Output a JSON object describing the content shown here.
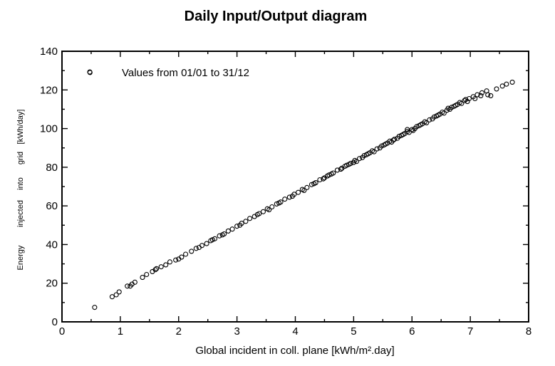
{
  "chart_data": {
    "type": "scatter",
    "title": "Daily Input/Output diagram",
    "xlabel": "Global incident in coll. plane [kWh/m².day]",
    "ylabel_words": [
      "Energy",
      "injected",
      "into",
      "grid",
      "[kWh/day]"
    ],
    "xlim": [
      0,
      8
    ],
    "ylim": [
      0,
      140
    ],
    "xticks": [
      0,
      1,
      2,
      3,
      4,
      5,
      6,
      7,
      8
    ],
    "yticks": [
      0,
      20,
      40,
      60,
      80,
      100,
      120,
      140
    ],
    "grid": false,
    "legend": {
      "label": "Values from 01/01 to 31/12",
      "placement": "top-left"
    },
    "series": [
      {
        "marker": "open-circle",
        "points": [
          [
            0.48,
            129
          ],
          [
            0.56,
            7.5
          ],
          [
            0.86,
            13
          ],
          [
            0.93,
            14
          ],
          [
            0.98,
            15.5
          ],
          [
            1.12,
            18.5
          ],
          [
            1.17,
            18.5
          ],
          [
            1.25,
            20.5
          ],
          [
            1.38,
            23
          ],
          [
            1.45,
            24.5
          ],
          [
            1.55,
            26
          ],
          [
            1.62,
            27.5
          ],
          [
            1.7,
            28.5
          ],
          [
            1.78,
            29.5
          ],
          [
            1.85,
            31
          ],
          [
            1.95,
            32
          ],
          [
            2.05,
            33.5
          ],
          [
            2.12,
            35
          ],
          [
            2.22,
            36.5
          ],
          [
            2.3,
            38
          ],
          [
            2.4,
            39.5
          ],
          [
            2.48,
            40.5
          ],
          [
            2.55,
            42
          ],
          [
            2.62,
            43
          ],
          [
            2.7,
            44.5
          ],
          [
            2.78,
            45.5
          ],
          [
            2.85,
            47
          ],
          [
            2.92,
            48
          ],
          [
            3.0,
            49.5
          ],
          [
            3.08,
            51
          ],
          [
            3.15,
            52
          ],
          [
            3.22,
            53.5
          ],
          [
            3.3,
            54.5
          ],
          [
            3.38,
            56
          ],
          [
            3.45,
            57
          ],
          [
            3.52,
            58.5
          ],
          [
            3.6,
            59.5
          ],
          [
            3.68,
            61
          ],
          [
            3.75,
            62
          ],
          [
            3.82,
            63.5
          ],
          [
            3.9,
            64.5
          ],
          [
            3.98,
            66
          ],
          [
            4.05,
            67
          ],
          [
            4.12,
            68.5
          ],
          [
            4.2,
            69.5
          ],
          [
            4.28,
            71
          ],
          [
            4.35,
            72
          ],
          [
            4.42,
            73.5
          ],
          [
            4.5,
            74.5
          ],
          [
            4.58,
            76
          ],
          [
            4.65,
            77
          ],
          [
            4.72,
            78.5
          ],
          [
            4.8,
            79.5
          ],
          [
            4.88,
            81
          ],
          [
            4.95,
            82
          ],
          [
            5.02,
            83.5
          ],
          [
            5.1,
            84.5
          ],
          [
            5.18,
            86
          ],
          [
            5.25,
            87
          ],
          [
            5.32,
            88.5
          ],
          [
            5.4,
            89.5
          ],
          [
            5.48,
            91
          ],
          [
            5.55,
            92
          ],
          [
            5.62,
            93.5
          ],
          [
            5.7,
            94.5
          ],
          [
            5.78,
            96
          ],
          [
            5.85,
            97
          ],
          [
            5.92,
            98.5
          ],
          [
            6.0,
            99.5
          ],
          [
            6.08,
            101
          ],
          [
            6.15,
            102
          ],
          [
            6.22,
            103.5
          ],
          [
            6.3,
            104.5
          ],
          [
            6.38,
            106
          ],
          [
            6.45,
            107
          ],
          [
            6.52,
            108.5
          ],
          [
            6.6,
            109.5
          ],
          [
            6.68,
            111
          ],
          [
            6.75,
            112
          ],
          [
            6.82,
            113.5
          ],
          [
            6.9,
            114.5
          ],
          [
            6.98,
            115.5
          ],
          [
            7.05,
            116.5
          ],
          [
            7.12,
            117.5
          ],
          [
            7.2,
            118.5
          ],
          [
            7.28,
            119.5
          ],
          [
            7.35,
            117
          ],
          [
            7.45,
            120.5
          ],
          [
            7.55,
            122
          ],
          [
            7.62,
            123
          ],
          [
            7.72,
            124
          ],
          [
            1.2,
            19.5
          ],
          [
            1.6,
            27
          ],
          [
            2.0,
            32.5
          ],
          [
            2.35,
            38.5
          ],
          [
            2.58,
            42.5
          ],
          [
            2.75,
            45
          ],
          [
            3.05,
            50
          ],
          [
            3.35,
            55.5
          ],
          [
            3.55,
            58
          ],
          [
            3.72,
            61.5
          ],
          [
            3.95,
            65
          ],
          [
            4.15,
            68
          ],
          [
            4.32,
            71.5
          ],
          [
            4.48,
            74
          ],
          [
            4.62,
            76.5
          ],
          [
            4.78,
            79
          ],
          [
            4.92,
            81.5
          ],
          [
            5.05,
            83
          ],
          [
            5.15,
            85
          ],
          [
            5.22,
            86.5
          ],
          [
            5.35,
            88
          ],
          [
            5.45,
            90
          ],
          [
            5.52,
            91.5
          ],
          [
            5.65,
            93
          ],
          [
            5.75,
            95
          ],
          [
            5.88,
            97.5
          ],
          [
            5.95,
            98
          ],
          [
            6.05,
            100
          ],
          [
            6.12,
            101.5
          ],
          [
            6.25,
            103
          ],
          [
            6.35,
            105
          ],
          [
            6.42,
            106.5
          ],
          [
            6.55,
            108
          ],
          [
            6.65,
            110
          ],
          [
            6.72,
            111.5
          ],
          [
            6.85,
            113
          ],
          [
            6.95,
            114
          ],
          [
            7.08,
            115.5
          ],
          [
            7.18,
            117
          ],
          [
            7.3,
            117.5
          ],
          [
            4.55,
            75.5
          ],
          [
            4.85,
            80.5
          ],
          [
            5.0,
            82.5
          ],
          [
            5.28,
            87.5
          ],
          [
            5.58,
            92.5
          ],
          [
            5.82,
            96.5
          ],
          [
            6.18,
            102.5
          ],
          [
            6.48,
            107.5
          ],
          [
            6.78,
            112.5
          ],
          [
            6.92,
            115
          ],
          [
            5.68,
            94
          ],
          [
            6.02,
            99
          ],
          [
            6.62,
            110.5
          ],
          [
            5.92,
            99.5
          ]
        ]
      }
    ]
  }
}
